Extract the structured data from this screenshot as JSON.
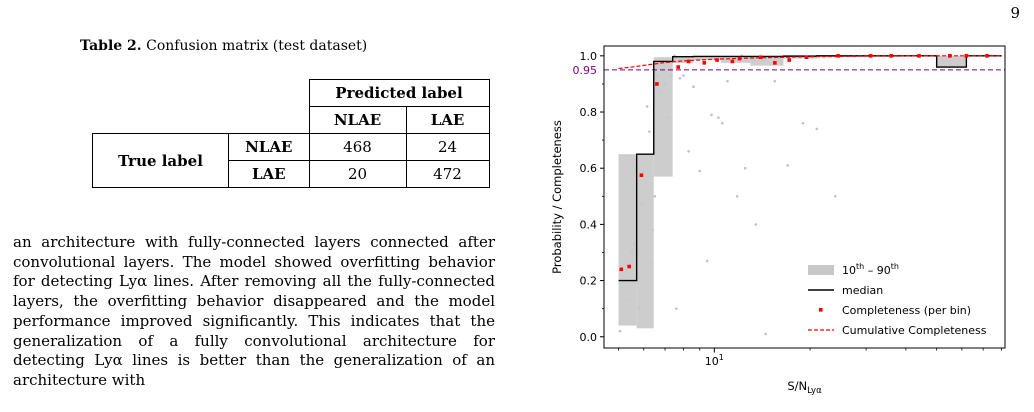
{
  "page": {
    "number": "9"
  },
  "table": {
    "caption_label": "Table 2.",
    "caption_text": " Confusion matrix (test dataset)",
    "predicted_header": "Predicted label",
    "true_header": "True label",
    "col_headers": [
      "NLAE",
      "LAE"
    ],
    "row_headers": [
      "NLAE",
      "LAE"
    ],
    "cells": [
      [
        "468",
        "24"
      ],
      [
        "20",
        "472"
      ]
    ]
  },
  "body_text": "an architecture with fully-connected layers connected after convolutional layers. The model showed overfitting behavior for detecting Lyα lines. After removing all the fully-connected layers, the overfitting behavior disappeared and the model performance improved significantly. This indicates that the generalization of a fully convolutional architecture for detecting Lyα lines is better than the generalization of an architecture with",
  "chart_data": {
    "type": "line",
    "xlabel": "S/N",
    "xlabel_sub": "Lyα",
    "ylabel": "Probability / Completeness",
    "xscale": "log",
    "xlim": [
      4.5,
      82
    ],
    "ylim": [
      -0.04,
      1.035
    ],
    "x_ticks": [
      {
        "value": 10,
        "label": "10",
        "sup": "1"
      }
    ],
    "y_ticks": [
      0.0,
      0.2,
      0.4,
      0.6,
      0.8,
      1.0
    ],
    "y_tick_labels": [
      "0.0",
      "0.2",
      "0.4",
      "0.6",
      "0.8",
      "1.0"
    ],
    "reference_line": {
      "value": 0.95,
      "label": "0.95",
      "color": "#800080"
    },
    "bins": [
      {
        "x0": 5.0,
        "x1": 5.7,
        "p10": 0.04,
        "p90": 0.65,
        "median": 0.2
      },
      {
        "x0": 5.7,
        "x1": 6.45,
        "p10": 0.03,
        "p90": 0.65,
        "median": 0.65
      },
      {
        "x0": 6.45,
        "x1": 7.4,
        "p10": 0.57,
        "p90": 0.995,
        "median": 0.98
      },
      {
        "x0": 7.4,
        "x1": 8.6,
        "p10": 0.975,
        "p90": 0.998,
        "median": 0.997
      },
      {
        "x0": 8.6,
        "x1": 10.5,
        "p10": 0.985,
        "p90": 0.999,
        "median": 0.998
      },
      {
        "x0": 10.5,
        "x1": 13.0,
        "p10": 0.975,
        "p90": 0.999,
        "median": 0.998
      },
      {
        "x0": 13.0,
        "x1": 16.5,
        "p10": 0.965,
        "p90": 0.999,
        "median": 0.998
      },
      {
        "x0": 16.5,
        "x1": 21.0,
        "p10": 0.99,
        "p90": 0.999,
        "median": 0.999
      },
      {
        "x0": 21.0,
        "x1": 28.0,
        "p10": 0.995,
        "p90": 1.0,
        "median": 1.0
      },
      {
        "x0": 28.0,
        "x1": 37.0,
        "p10": 0.996,
        "p90": 1.0,
        "median": 1.0
      },
      {
        "x0": 37.0,
        "x1": 50.0,
        "p10": 0.997,
        "p90": 1.0,
        "median": 1.0
      },
      {
        "x0": 50.0,
        "x1": 62.0,
        "p10": 0.96,
        "p90": 1.0,
        "median": 0.96
      },
      {
        "x0": 62.0,
        "x1": 80.0,
        "p10": 0.997,
        "p90": 1.0,
        "median": 1.0
      }
    ],
    "completeness_points": [
      {
        "x": 5.1,
        "y": 0.24
      },
      {
        "x": 5.4,
        "y": 0.25
      },
      {
        "x": 5.9,
        "y": 0.575
      },
      {
        "x": 6.6,
        "y": 0.9
      },
      {
        "x": 7.7,
        "y": 0.96
      },
      {
        "x": 8.3,
        "y": 0.98
      },
      {
        "x": 9.3,
        "y": 0.975
      },
      {
        "x": 10.2,
        "y": 0.985
      },
      {
        "x": 11.4,
        "y": 0.98
      },
      {
        "x": 12.0,
        "y": 0.99
      },
      {
        "x": 14.0,
        "y": 0.995
      },
      {
        "x": 15.5,
        "y": 0.975
      },
      {
        "x": 17.2,
        "y": 0.985
      },
      {
        "x": 19.5,
        "y": 0.995
      },
      {
        "x": 24.5,
        "y": 1.0
      },
      {
        "x": 31.0,
        "y": 1.0
      },
      {
        "x": 36.0,
        "y": 1.0
      },
      {
        "x": 44.0,
        "y": 1.0
      },
      {
        "x": 55.0,
        "y": 1.0
      },
      {
        "x": 62.0,
        "y": 1.0
      },
      {
        "x": 72.0,
        "y": 1.0
      }
    ],
    "cumulative_completeness": [
      {
        "x": 5.0,
        "y": 0.955
      },
      {
        "x": 5.5,
        "y": 0.96
      },
      {
        "x": 6.0,
        "y": 0.966
      },
      {
        "x": 7.0,
        "y": 0.976
      },
      {
        "x": 8.0,
        "y": 0.982
      },
      {
        "x": 10.0,
        "y": 0.988
      },
      {
        "x": 13.0,
        "y": 0.992
      },
      {
        "x": 18.0,
        "y": 0.996
      },
      {
        "x": 30.0,
        "y": 0.999
      },
      {
        "x": 50.0,
        "y": 1.0
      },
      {
        "x": 80.0,
        "y": 1.0
      }
    ],
    "scatter_points": [
      {
        "x": 5.05,
        "y": 0.02
      },
      {
        "x": 5.3,
        "y": 0.13
      },
      {
        "x": 5.5,
        "y": 0.3
      },
      {
        "x": 5.6,
        "y": 0.33
      },
      {
        "x": 5.8,
        "y": 0.1
      },
      {
        "x": 5.9,
        "y": 0.47
      },
      {
        "x": 6.0,
        "y": 0.59
      },
      {
        "x": 6.15,
        "y": 0.82
      },
      {
        "x": 6.25,
        "y": 0.73
      },
      {
        "x": 6.3,
        "y": 0.26
      },
      {
        "x": 6.4,
        "y": 0.38
      },
      {
        "x": 6.5,
        "y": 0.5
      },
      {
        "x": 6.6,
        "y": 0.93
      },
      {
        "x": 6.8,
        "y": 0.87
      },
      {
        "x": 7.0,
        "y": 0.9
      },
      {
        "x": 7.1,
        "y": 0.78
      },
      {
        "x": 7.3,
        "y": 0.93
      },
      {
        "x": 7.6,
        "y": 0.1
      },
      {
        "x": 7.8,
        "y": 0.92
      },
      {
        "x": 8.0,
        "y": 0.93
      },
      {
        "x": 8.3,
        "y": 0.66
      },
      {
        "x": 8.6,
        "y": 0.89
      },
      {
        "x": 9.0,
        "y": 0.59
      },
      {
        "x": 9.5,
        "y": 0.27
      },
      {
        "x": 9.8,
        "y": 0.79
      },
      {
        "x": 10.3,
        "y": 0.78
      },
      {
        "x": 10.6,
        "y": 0.76
      },
      {
        "x": 11.0,
        "y": 0.91
      },
      {
        "x": 11.8,
        "y": 0.5
      },
      {
        "x": 12.5,
        "y": 0.6
      },
      {
        "x": 13.5,
        "y": 0.4
      },
      {
        "x": 14.5,
        "y": 0.01
      },
      {
        "x": 15.5,
        "y": 0.91
      },
      {
        "x": 17.0,
        "y": 0.61
      },
      {
        "x": 19.0,
        "y": 0.76
      },
      {
        "x": 21.0,
        "y": 0.74
      },
      {
        "x": 24.0,
        "y": 0.5
      },
      {
        "x": 6.9,
        "y": 0.99
      },
      {
        "x": 7.5,
        "y": 1.0
      },
      {
        "x": 8.8,
        "y": 0.99
      },
      {
        "x": 12.2,
        "y": 1.0
      },
      {
        "x": 16.0,
        "y": 0.99
      }
    ],
    "legend": {
      "placement": "lower-right",
      "entries": [
        {
          "kind": "patch",
          "label": "10",
          "sup1": "th",
          "mid": " – 90",
          "sup2": "th"
        },
        {
          "kind": "line",
          "label": "median"
        },
        {
          "kind": "marker",
          "label": "Completeness (per bin)"
        },
        {
          "kind": "dashed",
          "label": "Cumulative Completeness"
        }
      ]
    },
    "colors": {
      "band": "#c8c8c8",
      "median": "#000000",
      "completeness": "#ff0000",
      "cumulative": "#ff0000",
      "scatter": "#c7b8e0",
      "reference": "#800080"
    }
  }
}
